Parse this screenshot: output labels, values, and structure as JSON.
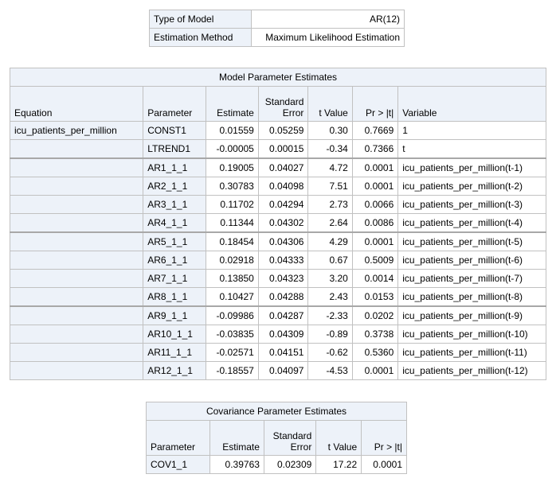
{
  "model_info": {
    "rows": [
      {
        "label": "Type of Model",
        "value": "AR(12)"
      },
      {
        "label": "Estimation Method",
        "value": "Maximum Likelihood Estimation"
      }
    ]
  },
  "param_table": {
    "title": "Model Parameter Estimates",
    "headers": {
      "equation": "Equation",
      "parameter": "Parameter",
      "estimate": "Estimate",
      "std_error_line1": "Standard",
      "std_error_line2": "Error",
      "t_value": "t Value",
      "pr_t": "Pr > |t|",
      "variable": "Variable"
    },
    "equation": "icu_patients_per_million",
    "rows": [
      {
        "parameter": "CONST1",
        "estimate": "0.01559",
        "std_error": "0.05259",
        "t_value": "0.30",
        "pr_t": "0.7669",
        "variable": "1"
      },
      {
        "parameter": "LTREND1",
        "estimate": "-0.00005",
        "std_error": "0.00015",
        "t_value": "-0.34",
        "pr_t": "0.7366",
        "variable": "t"
      },
      {
        "parameter": "AR1_1_1",
        "estimate": "0.19005",
        "std_error": "0.04027",
        "t_value": "4.72",
        "pr_t": "0.0001",
        "variable": "icu_patients_per_million(t-1)"
      },
      {
        "parameter": "AR2_1_1",
        "estimate": "0.30783",
        "std_error": "0.04098",
        "t_value": "7.51",
        "pr_t": "0.0001",
        "variable": "icu_patients_per_million(t-2)"
      },
      {
        "parameter": "AR3_1_1",
        "estimate": "0.11702",
        "std_error": "0.04294",
        "t_value": "2.73",
        "pr_t": "0.0066",
        "variable": "icu_patients_per_million(t-3)"
      },
      {
        "parameter": "AR4_1_1",
        "estimate": "0.11344",
        "std_error": "0.04302",
        "t_value": "2.64",
        "pr_t": "0.0086",
        "variable": "icu_patients_per_million(t-4)"
      },
      {
        "parameter": "AR5_1_1",
        "estimate": "0.18454",
        "std_error": "0.04306",
        "t_value": "4.29",
        "pr_t": "0.0001",
        "variable": "icu_patients_per_million(t-5)"
      },
      {
        "parameter": "AR6_1_1",
        "estimate": "0.02918",
        "std_error": "0.04333",
        "t_value": "0.67",
        "pr_t": "0.5009",
        "variable": "icu_patients_per_million(t-6)"
      },
      {
        "parameter": "AR7_1_1",
        "estimate": "0.13850",
        "std_error": "0.04323",
        "t_value": "3.20",
        "pr_t": "0.0014",
        "variable": "icu_patients_per_million(t-7)"
      },
      {
        "parameter": "AR8_1_1",
        "estimate": "0.10427",
        "std_error": "0.04288",
        "t_value": "2.43",
        "pr_t": "0.0153",
        "variable": "icu_patients_per_million(t-8)"
      },
      {
        "parameter": "AR9_1_1",
        "estimate": "-0.09986",
        "std_error": "0.04287",
        "t_value": "-2.33",
        "pr_t": "0.0202",
        "variable": "icu_patients_per_million(t-9)"
      },
      {
        "parameter": "AR10_1_1",
        "estimate": "-0.03835",
        "std_error": "0.04309",
        "t_value": "-0.89",
        "pr_t": "0.3738",
        "variable": "icu_patients_per_million(t-10)"
      },
      {
        "parameter": "AR11_1_1",
        "estimate": "-0.02571",
        "std_error": "0.04151",
        "t_value": "-0.62",
        "pr_t": "0.5360",
        "variable": "icu_patients_per_million(t-11)"
      },
      {
        "parameter": "AR12_1_1",
        "estimate": "-0.18557",
        "std_error": "0.04097",
        "t_value": "-4.53",
        "pr_t": "0.0001",
        "variable": "icu_patients_per_million(t-12)"
      }
    ]
  },
  "cov_table": {
    "title": "Covariance Parameter Estimates",
    "headers": {
      "parameter": "Parameter",
      "estimate": "Estimate",
      "std_error_line1": "Standard",
      "std_error_line2": "Error",
      "t_value": "t Value",
      "pr_t": "Pr > |t|"
    },
    "rows": [
      {
        "parameter": "COV1_1",
        "estimate": "0.39763",
        "std_error": "0.02309",
        "t_value": "17.22",
        "pr_t": "0.0001"
      }
    ]
  },
  "colors": {
    "header_bg": "#edf2f9",
    "border": "#c1c1c1",
    "group_separator": "#a8a8a8"
  }
}
